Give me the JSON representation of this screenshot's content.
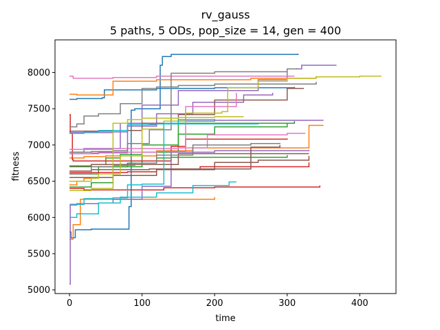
{
  "chart_data": {
    "type": "line",
    "title": "rv_gauss",
    "subtitle": "5 paths, 5 ODs, pop_size = 14, gen = 400",
    "xlabel": "time",
    "ylabel": "fitness",
    "xlim": [
      -20,
      450
    ],
    "ylim": [
      4950,
      8450
    ],
    "xticks": [
      0,
      100,
      200,
      300,
      400
    ],
    "yticks": [
      5000,
      5500,
      6000,
      6500,
      7000,
      7500,
      8000
    ],
    "grid": false,
    "legend": "none",
    "series": [
      {
        "color": "#1f77b4",
        "points": [
          [
            0,
            5800
          ],
          [
            2,
            5720
          ],
          [
            8,
            5830
          ],
          [
            30,
            5840
          ],
          [
            80,
            5840
          ],
          [
            82,
            6150
          ],
          [
            85,
            7480
          ],
          [
            90,
            7500
          ],
          [
            125,
            8100
          ],
          [
            128,
            8220
          ],
          [
            140,
            8250
          ],
          [
            315,
            8260
          ]
        ]
      },
      {
        "color": "#1f77b4",
        "points": [
          [
            0,
            7630
          ],
          [
            10,
            7640
          ],
          [
            45,
            7650
          ],
          [
            48,
            7760
          ],
          [
            70,
            7760
          ],
          [
            120,
            7780
          ],
          [
            200,
            7790
          ],
          [
            310,
            7800
          ]
        ]
      },
      {
        "color": "#ff7f0e",
        "points": [
          [
            0,
            7700
          ],
          [
            10,
            7690
          ],
          [
            40,
            7690
          ],
          [
            60,
            7880
          ],
          [
            120,
            7900
          ],
          [
            250,
            7920
          ],
          [
            340,
            7950
          ]
        ]
      },
      {
        "color": "#ff7f0e",
        "points": [
          [
            0,
            6820
          ],
          [
            20,
            6840
          ],
          [
            50,
            6850
          ],
          [
            120,
            6920
          ],
          [
            170,
            6960
          ],
          [
            330,
            7270
          ],
          [
            350,
            7270
          ]
        ]
      },
      {
        "color": "#ff7f0e",
        "points": [
          [
            0,
            6450
          ],
          [
            10,
            6500
          ],
          [
            20,
            6540
          ],
          [
            30,
            6550
          ]
        ]
      },
      {
        "color": "#ff7f0e",
        "points": [
          [
            0,
            5700
          ],
          [
            5,
            5900
          ],
          [
            15,
            6250
          ],
          [
            200,
            6280
          ]
        ]
      },
      {
        "color": "#2ca02c",
        "points": [
          [
            0,
            6700
          ],
          [
            30,
            6730
          ],
          [
            50,
            6820
          ],
          [
            70,
            6870
          ],
          [
            100,
            6900
          ],
          [
            150,
            7150
          ],
          [
            200,
            7250
          ],
          [
            300,
            7300
          ]
        ]
      },
      {
        "color": "#2ca02c",
        "points": [
          [
            0,
            6600
          ],
          [
            40,
            6700
          ],
          [
            80,
            6750
          ],
          [
            120,
            6820
          ],
          [
            140,
            6830
          ],
          [
            300,
            6860
          ]
        ]
      },
      {
        "color": "#2ca02c",
        "points": [
          [
            0,
            6420
          ],
          [
            30,
            6480
          ],
          [
            60,
            6700
          ],
          [
            100,
            7000
          ],
          [
            150,
            7300
          ],
          [
            310,
            7330
          ]
        ]
      },
      {
        "color": "#d62728",
        "points": [
          [
            0,
            7420
          ],
          [
            1,
            7160
          ],
          [
            3,
            7160
          ],
          [
            4,
            6800
          ],
          [
            5,
            6780
          ],
          [
            80,
            6780
          ],
          [
            140,
            6980
          ],
          [
            160,
            7080
          ],
          [
            300,
            7090
          ]
        ]
      },
      {
        "color": "#d62728",
        "points": [
          [
            0,
            6620
          ],
          [
            10,
            6620
          ],
          [
            80,
            6630
          ],
          [
            120,
            6660
          ],
          [
            180,
            6700
          ],
          [
            330,
            6760
          ]
        ]
      },
      {
        "color": "#d62728",
        "points": [
          [
            0,
            6400
          ],
          [
            20,
            6380
          ],
          [
            100,
            6380
          ],
          [
            130,
            6410
          ],
          [
            200,
            6420
          ],
          [
            320,
            6420
          ],
          [
            345,
            6440
          ]
        ]
      },
      {
        "color": "#9467bd",
        "points": [
          [
            0,
            7170
          ],
          [
            60,
            7180
          ],
          [
            80,
            7260
          ],
          [
            120,
            7300
          ],
          [
            150,
            7330
          ],
          [
            200,
            7340
          ],
          [
            350,
            7340
          ]
        ]
      },
      {
        "color": "#9467bd",
        "points": [
          [
            0,
            5080
          ],
          [
            1,
            6180
          ],
          [
            10,
            6190
          ],
          [
            40,
            6200
          ],
          [
            60,
            6250
          ],
          [
            100,
            6430
          ],
          [
            140,
            6900
          ],
          [
            200,
            6920
          ],
          [
            330,
            6930
          ]
        ]
      },
      {
        "color": "#9467bd",
        "points": [
          [
            0,
            6900
          ],
          [
            20,
            6950
          ],
          [
            70,
            7300
          ],
          [
            100,
            7550
          ],
          [
            150,
            7750
          ],
          [
            200,
            7750
          ],
          [
            260,
            7900
          ],
          [
            300,
            8050
          ],
          [
            320,
            8100
          ],
          [
            368,
            8100
          ]
        ]
      },
      {
        "color": "#9467bd",
        "points": [
          [
            0,
            6880
          ],
          [
            40,
            6900
          ],
          [
            80,
            7280
          ],
          [
            120,
            7430
          ],
          [
            170,
            7590
          ],
          [
            240,
            7690
          ],
          [
            280,
            7720
          ]
        ]
      },
      {
        "color": "#8c564b",
        "points": [
          [
            0,
            7190
          ],
          [
            60,
            7200
          ],
          [
            100,
            7300
          ],
          [
            150,
            7420
          ],
          [
            200,
            7620
          ],
          [
            300,
            7780
          ],
          [
            323,
            7780
          ]
        ]
      },
      {
        "color": "#8c564b",
        "points": [
          [
            0,
            6550
          ],
          [
            60,
            6580
          ],
          [
            120,
            6660
          ],
          [
            200,
            6760
          ],
          [
            260,
            6790
          ],
          [
            330,
            6850
          ]
        ]
      },
      {
        "color": "#8c564b",
        "points": [
          [
            0,
            6710
          ],
          [
            30,
            6730
          ],
          [
            150,
            6880
          ],
          [
            260,
            6880
          ],
          [
            330,
            6880
          ]
        ]
      },
      {
        "color": "#8c564b",
        "points": [
          [
            0,
            6640
          ],
          [
            30,
            6660
          ],
          [
            110,
            6670
          ],
          [
            250,
            6970
          ],
          [
            290,
            7000
          ]
        ]
      },
      {
        "color": "#e377c2",
        "points": [
          [
            0,
            7950
          ],
          [
            5,
            7920
          ],
          [
            60,
            7930
          ],
          [
            120,
            7950
          ],
          [
            310,
            7950
          ]
        ]
      },
      {
        "color": "#e377c2",
        "points": [
          [
            0,
            6880
          ],
          [
            30,
            6890
          ],
          [
            80,
            6900
          ],
          [
            120,
            6910
          ],
          [
            160,
            7530
          ],
          [
            230,
            7720
          ]
        ]
      },
      {
        "color": "#e377c2",
        "points": [
          [
            0,
            6940
          ],
          [
            60,
            6950
          ],
          [
            150,
            6960
          ],
          [
            190,
            7140
          ],
          [
            300,
            7160
          ],
          [
            325,
            7160
          ]
        ]
      },
      {
        "color": "#7f7f7f",
        "points": [
          [
            0,
            7250
          ],
          [
            10,
            7290
          ],
          [
            20,
            7400
          ],
          [
            40,
            7430
          ],
          [
            70,
            7570
          ],
          [
            100,
            7780
          ],
          [
            120,
            7800
          ],
          [
            150,
            7820
          ],
          [
            200,
            7840
          ],
          [
            340,
            7870
          ]
        ]
      },
      {
        "color": "#7f7f7f",
        "points": [
          [
            0,
            6900
          ],
          [
            30,
            6910
          ],
          [
            60,
            6920
          ],
          [
            80,
            7020
          ],
          [
            110,
            7210
          ],
          [
            140,
            7990
          ],
          [
            200,
            8010
          ],
          [
            300,
            8050
          ],
          [
            313,
            8060
          ]
        ]
      },
      {
        "color": "#7f7f7f",
        "points": [
          [
            0,
            6600
          ],
          [
            30,
            6700
          ],
          [
            60,
            6720
          ],
          [
            90,
            6750
          ],
          [
            120,
            6860
          ],
          [
            170,
            7000
          ],
          [
            250,
            7020
          ],
          [
            290,
            7030
          ]
        ]
      },
      {
        "color": "#bcbd22",
        "points": [
          [
            0,
            6500
          ],
          [
            30,
            6540
          ],
          [
            40,
            6600
          ],
          [
            70,
            6850
          ],
          [
            100,
            7220
          ],
          [
            130,
            7330
          ],
          [
            160,
            7440
          ],
          [
            210,
            7460
          ],
          [
            216,
            7460
          ],
          [
            218,
            7790
          ],
          [
            260,
            7880
          ],
          [
            300,
            7920
          ],
          [
            340,
            7940
          ],
          [
            400,
            7950
          ],
          [
            430,
            7950
          ]
        ]
      },
      {
        "color": "#bcbd22",
        "points": [
          [
            0,
            6370
          ],
          [
            30,
            6400
          ],
          [
            60,
            7300
          ],
          [
            80,
            7350
          ],
          [
            100,
            7370
          ],
          [
            150,
            7380
          ],
          [
            200,
            7390
          ],
          [
            240,
            7390
          ]
        ]
      },
      {
        "color": "#17becf",
        "points": [
          [
            0,
            6170
          ],
          [
            10,
            6180
          ],
          [
            20,
            6260
          ],
          [
            60,
            6270
          ],
          [
            80,
            6450
          ],
          [
            100,
            6460
          ],
          [
            130,
            7300
          ],
          [
            150,
            7350
          ],
          [
            200,
            7360
          ]
        ]
      },
      {
        "color": "#17becf",
        "points": [
          [
            0,
            7160
          ],
          [
            20,
            7180
          ],
          [
            40,
            7200
          ],
          [
            80,
            7280
          ],
          [
            110,
            7290
          ],
          [
            200,
            7290
          ],
          [
            260,
            7300
          ]
        ]
      },
      {
        "color": "#17becf",
        "points": [
          [
            0,
            6000
          ],
          [
            10,
            6050
          ],
          [
            40,
            6200
          ],
          [
            70,
            6280
          ],
          [
            120,
            6340
          ],
          [
            170,
            6440
          ],
          [
            220,
            6490
          ],
          [
            230,
            6490
          ]
        ]
      }
    ]
  }
}
